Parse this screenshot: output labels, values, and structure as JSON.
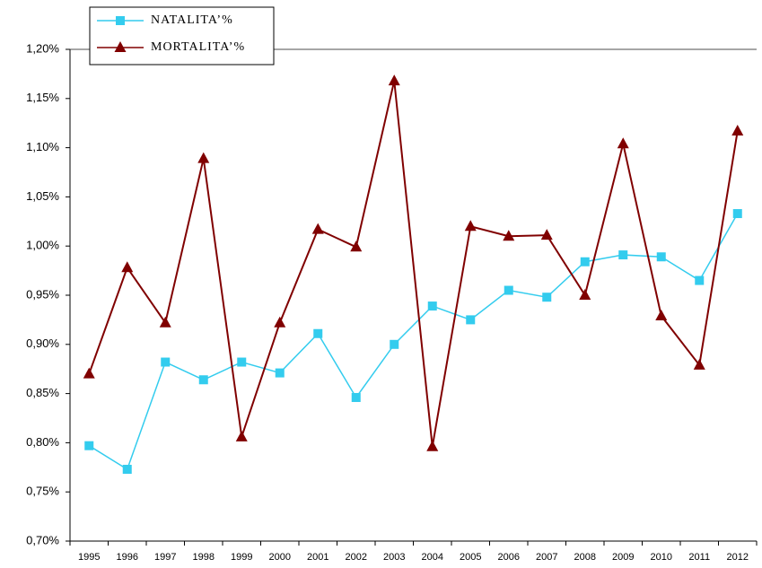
{
  "chart_data": {
    "type": "line",
    "categories": [
      "1995",
      "1996",
      "1997",
      "1998",
      "1999",
      "2000",
      "2001",
      "2002",
      "2003",
      "2004",
      "2005",
      "2006",
      "2007",
      "2008",
      "2009",
      "2010",
      "2011",
      "2012"
    ],
    "series": [
      {
        "name": "NATALITA’%",
        "color": "#33ccee",
        "marker": "square",
        "values": [
          0.797,
          0.773,
          0.882,
          0.864,
          0.882,
          0.871,
          0.911,
          0.846,
          0.9,
          0.939,
          0.925,
          0.955,
          0.948,
          0.984,
          0.991,
          0.989,
          0.965,
          1.033
        ]
      },
      {
        "name": "MORTALITA’%",
        "color": "#800000",
        "marker": "triangle",
        "values": [
          0.87,
          0.978,
          0.922,
          1.089,
          0.806,
          0.922,
          1.017,
          0.999,
          1.168,
          0.796,
          1.02,
          1.01,
          1.011,
          0.95,
          1.104,
          0.929,
          0.879,
          1.117
        ]
      }
    ],
    "ylim": [
      0.7,
      1.2
    ],
    "yticks": [
      {
        "value": 0.7,
        "label": "0,70%"
      },
      {
        "value": 0.75,
        "label": "0,75%"
      },
      {
        "value": 0.8,
        "label": "0,80%"
      },
      {
        "value": 0.85,
        "label": "0,85%"
      },
      {
        "value": 0.9,
        "label": "0,90%"
      },
      {
        "value": 0.95,
        "label": "0,95%"
      },
      {
        "value": 1.0,
        "label": "1,00%"
      },
      {
        "value": 1.05,
        "label": "1,05%"
      },
      {
        "value": 1.1,
        "label": "1,10%"
      },
      {
        "value": 1.15,
        "label": "1,15%"
      },
      {
        "value": 1.2,
        "label": "1,20%"
      }
    ],
    "grid": false,
    "legend": "top-left"
  }
}
